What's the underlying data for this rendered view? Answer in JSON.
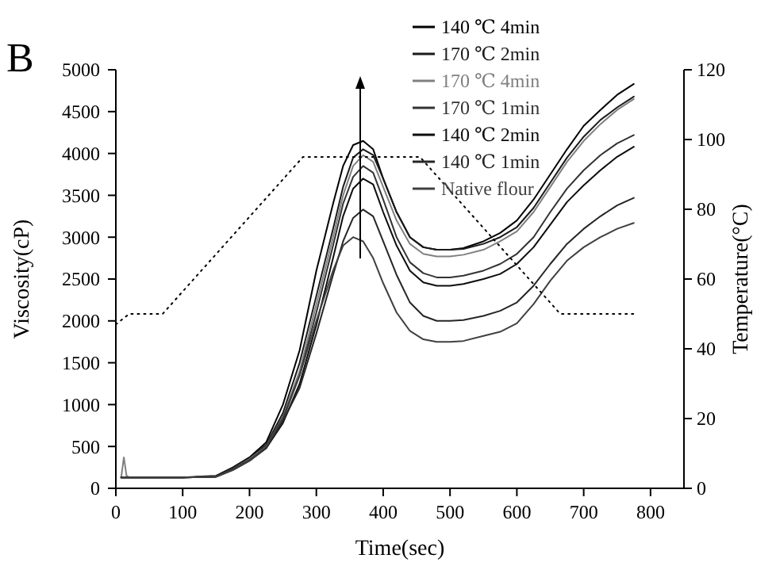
{
  "chart_data": {
    "type": "line",
    "title": "B",
    "xlabel": "Time(sec)",
    "ylabel": "Viscosity(cP)",
    "y2label": "Temperature(°C)",
    "x": [
      8,
      12,
      16,
      20,
      50,
      100,
      150,
      175,
      200,
      225,
      250,
      275,
      300,
      325,
      340,
      355,
      370,
      385,
      400,
      420,
      440,
      460,
      480,
      500,
      520,
      550,
      575,
      600,
      625,
      650,
      675,
      700,
      725,
      750,
      775
    ],
    "xlim": [
      0,
      850
    ],
    "xticks": [
      0,
      100,
      200,
      300,
      400,
      500,
      600,
      700,
      800
    ],
    "ylim": [
      0,
      5000
    ],
    "yticks": [
      0,
      500,
      1000,
      1500,
      2000,
      2500,
      3000,
      3500,
      4000,
      4500,
      5000
    ],
    "y2lim": [
      0,
      120
    ],
    "y2ticks": [
      0,
      20,
      40,
      60,
      80,
      100,
      120
    ],
    "legend": "top",
    "grid": false,
    "marker": "none",
    "series": [
      {
        "name": "140 ℃ 4min",
        "color": "#000000",
        "values": [
          130,
          130,
          130,
          130,
          130,
          130,
          150,
          250,
          370,
          550,
          1000,
          1650,
          2600,
          3400,
          3850,
          4100,
          4150,
          4050,
          3700,
          3300,
          3000,
          2880,
          2850,
          2850,
          2870,
          2950,
          3050,
          3200,
          3450,
          3750,
          4050,
          4330,
          4520,
          4700,
          4830
        ]
      },
      {
        "name": "170 ℃ 2min",
        "color": "#1a1a1a",
        "values": [
          130,
          130,
          130,
          130,
          130,
          130,
          140,
          240,
          360,
          520,
          900,
          1500,
          2300,
          3100,
          3600,
          3950,
          4050,
          3980,
          3700,
          3300,
          3000,
          2880,
          2850,
          2850,
          2860,
          2920,
          3000,
          3120,
          3350,
          3650,
          3950,
          4200,
          4400,
          4550,
          4680
        ]
      },
      {
        "name": "170 ℃ 4min",
        "color": "#808080",
        "values": [
          130,
          370,
          150,
          130,
          130,
          130,
          140,
          230,
          350,
          500,
          850,
          1400,
          2200,
          3000,
          3500,
          3850,
          3980,
          3900,
          3600,
          3200,
          2920,
          2800,
          2770,
          2770,
          2790,
          2850,
          2950,
          3070,
          3300,
          3600,
          3900,
          4150,
          4350,
          4520,
          4650
        ]
      },
      {
        "name": "170 ℃ 1min",
        "color": "#333333",
        "values": [
          130,
          130,
          130,
          130,
          130,
          130,
          140,
          230,
          340,
          490,
          820,
          1350,
          2100,
          2900,
          3400,
          3720,
          3850,
          3770,
          3450,
          3000,
          2700,
          2570,
          2520,
          2520,
          2540,
          2600,
          2680,
          2800,
          3000,
          3300,
          3580,
          3800,
          3980,
          4120,
          4220
        ]
      },
      {
        "name": "140 ℃ 2min",
        "color": "#0d0d0d",
        "values": [
          130,
          130,
          130,
          130,
          130,
          130,
          140,
          220,
          330,
          480,
          780,
          1250,
          1950,
          2750,
          3250,
          3580,
          3700,
          3630,
          3300,
          2900,
          2600,
          2460,
          2420,
          2420,
          2440,
          2500,
          2560,
          2680,
          2880,
          3150,
          3420,
          3620,
          3800,
          3960,
          4080
        ]
      },
      {
        "name": "140 ℃ 1min",
        "color": "#262626",
        "values": [
          130,
          130,
          130,
          130,
          130,
          130,
          140,
          220,
          330,
          480,
          800,
          1200,
          1850,
          2550,
          2950,
          3230,
          3330,
          3250,
          2950,
          2550,
          2220,
          2060,
          2000,
          2000,
          2010,
          2060,
          2120,
          2220,
          2420,
          2680,
          2920,
          3100,
          3250,
          3380,
          3470
        ]
      },
      {
        "name": "Native flour",
        "color": "#404040",
        "values": [
          130,
          130,
          130,
          130,
          130,
          130,
          140,
          220,
          330,
          500,
          850,
          1350,
          2000,
          2600,
          2900,
          3000,
          2950,
          2750,
          2450,
          2100,
          1880,
          1780,
          1750,
          1750,
          1760,
          1820,
          1870,
          1970,
          2200,
          2480,
          2720,
          2880,
          3000,
          3100,
          3170
        ]
      },
      {
        "color": "#000000",
        "axis": "y2",
        "line_style": "dotted",
        "x": [
          0,
          20,
          70,
          280,
          455,
          665,
          775
        ],
        "values": [
          47,
          50,
          50,
          95,
          95,
          50,
          50
        ]
      }
    ]
  }
}
